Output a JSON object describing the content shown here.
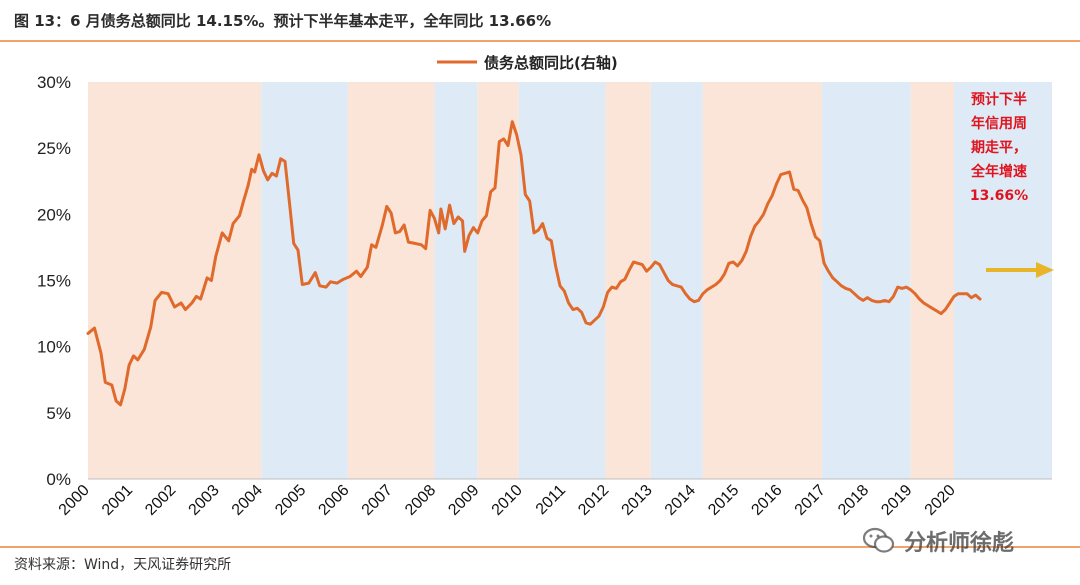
{
  "header": {
    "title": "图 13：6 月债务总额同比 14.15%。预计下半年基本走平，全年同比 13.66%"
  },
  "footer": {
    "source": "资料来源：Wind，天风证券研究所",
    "watermark": "分析师徐彪"
  },
  "chart_data": {
    "type": "line",
    "ylim": [
      0,
      30
    ],
    "y_ticks": [
      "0%",
      "5%",
      "10%",
      "15%",
      "20%",
      "25%",
      "30%"
    ],
    "x_ticks": [
      "2000",
      "2001",
      "2002",
      "2003",
      "2004",
      "2005",
      "2006",
      "2007",
      "2008",
      "2009",
      "2010",
      "2011",
      "2012",
      "2013",
      "2014",
      "2015",
      "2016",
      "2017",
      "2018",
      "2019",
      "2020"
    ],
    "legend": {
      "position": "top-center"
    },
    "series": [
      {
        "name": "债务总额同比(右轴)",
        "color": "#e06a2c",
        "points": [
          [
            2000.0,
            11.0
          ],
          [
            2000.15,
            11.4
          ],
          [
            2000.3,
            9.5
          ],
          [
            2000.4,
            7.3
          ],
          [
            2000.55,
            7.1
          ],
          [
            2000.65,
            5.9
          ],
          [
            2000.75,
            5.6
          ],
          [
            2000.85,
            6.8
          ],
          [
            2000.95,
            8.6
          ],
          [
            2001.05,
            9.3
          ],
          [
            2001.15,
            9.0
          ],
          [
            2001.3,
            9.8
          ],
          [
            2001.45,
            11.5
          ],
          [
            2001.55,
            13.5
          ],
          [
            2001.7,
            14.1
          ],
          [
            2001.85,
            14.0
          ],
          [
            2002.0,
            13.0
          ],
          [
            2002.15,
            13.3
          ],
          [
            2002.25,
            12.8
          ],
          [
            2002.4,
            13.3
          ],
          [
            2002.5,
            13.8
          ],
          [
            2002.6,
            13.6
          ],
          [
            2002.75,
            15.2
          ],
          [
            2002.85,
            15.0
          ],
          [
            2002.95,
            16.8
          ],
          [
            2003.1,
            18.6
          ],
          [
            2003.25,
            18.0
          ],
          [
            2003.35,
            19.3
          ],
          [
            2003.5,
            19.9
          ],
          [
            2003.6,
            21.1
          ],
          [
            2003.7,
            22.2
          ],
          [
            2003.78,
            23.4
          ],
          [
            2003.85,
            23.2
          ],
          [
            2003.95,
            24.5
          ],
          [
            2004.05,
            23.3
          ],
          [
            2004.15,
            22.6
          ],
          [
            2004.25,
            23.1
          ],
          [
            2004.35,
            22.9
          ],
          [
            2004.45,
            24.2
          ],
          [
            2004.55,
            24.0
          ],
          [
            2004.65,
            21.0
          ],
          [
            2004.75,
            17.8
          ],
          [
            2004.85,
            17.3
          ],
          [
            2004.95,
            14.7
          ],
          [
            2005.1,
            14.8
          ],
          [
            2005.25,
            15.6
          ],
          [
            2005.35,
            14.6
          ],
          [
            2005.5,
            14.5
          ],
          [
            2005.6,
            14.9
          ],
          [
            2005.75,
            14.8
          ],
          [
            2005.9,
            15.1
          ],
          [
            2006.05,
            15.3
          ],
          [
            2006.2,
            15.7
          ],
          [
            2006.3,
            15.3
          ],
          [
            2006.45,
            16.0
          ],
          [
            2006.55,
            17.7
          ],
          [
            2006.65,
            17.5
          ],
          [
            2006.8,
            19.2
          ],
          [
            2006.9,
            20.6
          ],
          [
            2007.0,
            20.1
          ],
          [
            2007.1,
            18.6
          ],
          [
            2007.2,
            18.7
          ],
          [
            2007.3,
            19.2
          ],
          [
            2007.4,
            17.9
          ],
          [
            2007.55,
            17.8
          ],
          [
            2007.7,
            17.7
          ],
          [
            2007.8,
            17.4
          ],
          [
            2007.9,
            20.3
          ],
          [
            2008.0,
            19.7
          ],
          [
            2008.1,
            18.6
          ],
          [
            2008.15,
            20.4
          ],
          [
            2008.25,
            18.9
          ],
          [
            2008.35,
            20.7
          ],
          [
            2008.45,
            19.3
          ],
          [
            2008.55,
            19.8
          ],
          [
            2008.65,
            19.5
          ],
          [
            2008.7,
            17.2
          ],
          [
            2008.8,
            18.4
          ],
          [
            2008.9,
            19.0
          ],
          [
            2009.0,
            18.6
          ],
          [
            2009.1,
            19.5
          ],
          [
            2009.2,
            19.9
          ],
          [
            2009.3,
            21.7
          ],
          [
            2009.4,
            22.0
          ],
          [
            2009.5,
            25.5
          ],
          [
            2009.6,
            25.7
          ],
          [
            2009.7,
            25.2
          ],
          [
            2009.8,
            27.0
          ],
          [
            2009.9,
            26.0
          ],
          [
            2010.0,
            24.5
          ],
          [
            2010.1,
            21.5
          ],
          [
            2010.2,
            21.0
          ],
          [
            2010.3,
            18.6
          ],
          [
            2010.4,
            18.8
          ],
          [
            2010.5,
            19.3
          ],
          [
            2010.6,
            18.2
          ],
          [
            2010.7,
            18.0
          ],
          [
            2010.8,
            16.1
          ],
          [
            2010.9,
            14.6
          ],
          [
            2011.0,
            14.2
          ],
          [
            2011.1,
            13.3
          ],
          [
            2011.2,
            12.8
          ],
          [
            2011.3,
            12.9
          ],
          [
            2011.4,
            12.6
          ],
          [
            2011.5,
            11.8
          ],
          [
            2011.6,
            11.7
          ],
          [
            2011.7,
            12.0
          ],
          [
            2011.8,
            12.3
          ],
          [
            2011.9,
            13.0
          ],
          [
            2012.0,
            14.1
          ],
          [
            2012.1,
            14.5
          ],
          [
            2012.2,
            14.4
          ],
          [
            2012.3,
            14.9
          ],
          [
            2012.4,
            15.1
          ],
          [
            2012.5,
            15.8
          ],
          [
            2012.6,
            16.4
          ],
          [
            2012.7,
            16.3
          ],
          [
            2012.8,
            16.2
          ],
          [
            2012.9,
            15.7
          ],
          [
            2013.0,
            16.0
          ],
          [
            2013.1,
            16.4
          ],
          [
            2013.2,
            16.2
          ],
          [
            2013.3,
            15.6
          ],
          [
            2013.4,
            15.0
          ],
          [
            2013.5,
            14.7
          ],
          [
            2013.6,
            14.6
          ],
          [
            2013.7,
            14.5
          ],
          [
            2013.8,
            14.0
          ],
          [
            2013.9,
            13.6
          ],
          [
            2014.0,
            13.4
          ],
          [
            2014.1,
            13.5
          ],
          [
            2014.2,
            14.0
          ],
          [
            2014.3,
            14.3
          ],
          [
            2014.4,
            14.5
          ],
          [
            2014.5,
            14.7
          ],
          [
            2014.6,
            15.0
          ],
          [
            2014.7,
            15.5
          ],
          [
            2014.8,
            16.3
          ],
          [
            2014.9,
            16.4
          ],
          [
            2015.0,
            16.1
          ],
          [
            2015.1,
            16.5
          ],
          [
            2015.2,
            17.2
          ],
          [
            2015.3,
            18.3
          ],
          [
            2015.4,
            19.1
          ],
          [
            2015.5,
            19.5
          ],
          [
            2015.6,
            20.0
          ],
          [
            2015.7,
            20.8
          ],
          [
            2015.8,
            21.4
          ],
          [
            2015.9,
            22.3
          ],
          [
            2016.0,
            23.0
          ],
          [
            2016.1,
            23.1
          ],
          [
            2016.2,
            23.2
          ],
          [
            2016.3,
            21.9
          ],
          [
            2016.4,
            21.8
          ],
          [
            2016.5,
            21.1
          ],
          [
            2016.6,
            20.5
          ],
          [
            2016.7,
            19.3
          ],
          [
            2016.8,
            18.3
          ],
          [
            2016.9,
            18.0
          ],
          [
            2017.0,
            16.3
          ],
          [
            2017.1,
            15.7
          ],
          [
            2017.2,
            15.2
          ],
          [
            2017.3,
            14.9
          ],
          [
            2017.4,
            14.6
          ],
          [
            2017.5,
            14.4
          ],
          [
            2017.6,
            14.3
          ],
          [
            2017.7,
            14.0
          ],
          [
            2017.8,
            13.7
          ],
          [
            2017.9,
            13.5
          ],
          [
            2018.0,
            13.7
          ],
          [
            2018.1,
            13.5
          ],
          [
            2018.2,
            13.4
          ],
          [
            2018.3,
            13.4
          ],
          [
            2018.4,
            13.5
          ],
          [
            2018.5,
            13.4
          ],
          [
            2018.6,
            13.8
          ],
          [
            2018.7,
            14.5
          ],
          [
            2018.8,
            14.4
          ],
          [
            2018.9,
            14.5
          ],
          [
            2019.0,
            14.3
          ],
          [
            2019.1,
            14.0
          ],
          [
            2019.2,
            13.6
          ],
          [
            2019.3,
            13.3
          ],
          [
            2019.4,
            13.1
          ],
          [
            2019.5,
            12.9
          ],
          [
            2019.6,
            12.7
          ],
          [
            2019.7,
            12.5
          ],
          [
            2019.8,
            12.8
          ],
          [
            2019.9,
            13.3
          ],
          [
            2020.0,
            13.8
          ],
          [
            2020.1,
            14.0
          ],
          [
            2020.2,
            14.0
          ],
          [
            2020.3,
            14.0
          ],
          [
            2020.4,
            13.7
          ],
          [
            2020.5,
            13.9
          ],
          [
            2020.6,
            13.6
          ]
        ]
      }
    ],
    "shaded_periods": [
      {
        "from": 2000.0,
        "to": 2004.0,
        "color": "#fbe5d8"
      },
      {
        "from": 2004.0,
        "to": 2006.0,
        "color": "#deebf6"
      },
      {
        "from": 2006.0,
        "to": 2008.0,
        "color": "#fbe5d8"
      },
      {
        "from": 2008.0,
        "to": 2009.0,
        "color": "#deebf6"
      },
      {
        "from": 2009.0,
        "to": 2009.95,
        "color": "#fbe5d8"
      },
      {
        "from": 2009.95,
        "to": 2011.95,
        "color": "#deebf6"
      },
      {
        "from": 2011.95,
        "to": 2013.0,
        "color": "#fbe5d8"
      },
      {
        "from": 2013.0,
        "to": 2014.2,
        "color": "#deebf6"
      },
      {
        "from": 2014.2,
        "to": 2016.95,
        "color": "#fbe5d8"
      },
      {
        "from": 2016.95,
        "to": 2019.0,
        "color": "#deebf6"
      },
      {
        "from": 2019.0,
        "to": 2020.0,
        "color": "#fbe5d8"
      },
      {
        "from": 2020.0,
        "to": 2022.4,
        "color": "#deebf6"
      }
    ],
    "annotation": {
      "lines": [
        "预计下半",
        "年信用周",
        "期走平，",
        "全年增速",
        "13.66%"
      ],
      "color": "#e0141e",
      "arrow_color": "#e8b52a"
    }
  }
}
